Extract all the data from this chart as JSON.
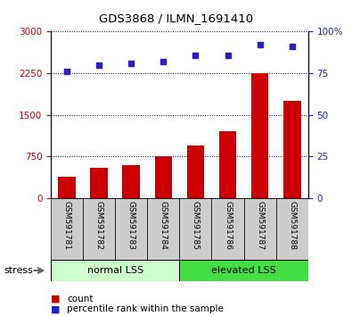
{
  "title": "GDS3868 / ILMN_1691410",
  "samples": [
    "GSM591781",
    "GSM591782",
    "GSM591783",
    "GSM591784",
    "GSM591785",
    "GSM591786",
    "GSM591787",
    "GSM591788"
  ],
  "counts": [
    380,
    550,
    590,
    750,
    950,
    1200,
    2250,
    1750
  ],
  "percentile_ranks": [
    76,
    80,
    81,
    82,
    86,
    86,
    92,
    91
  ],
  "group_labels": [
    "normal LSS",
    "elevated LSS"
  ],
  "normal_color": "#ccffcc",
  "elevated_color": "#44dd44",
  "bar_color": "#cc0000",
  "dot_color": "#2222cc",
  "ylim_left": [
    0,
    3000
  ],
  "ylim_right": [
    0,
    100
  ],
  "yticks_left": [
    0,
    750,
    1500,
    2250,
    3000
  ],
  "yticks_right": [
    0,
    25,
    50,
    75,
    100
  ],
  "stress_label": "stress",
  "legend_count": "count",
  "legend_pct": "percentile rank within the sample",
  "title_fontsize": 9.5,
  "tick_fontsize": 7.5,
  "label_fontsize": 7.5
}
